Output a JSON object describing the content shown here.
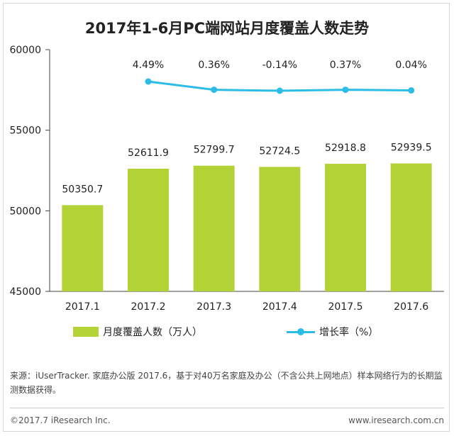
{
  "chart_data": {
    "type": "bar",
    "title": "2017年1-6月PC端网站月度覆盖人数走势",
    "categories": [
      "2017.1",
      "2017.2",
      "2017.3",
      "2017.4",
      "2017.5",
      "2017.6"
    ],
    "ylim": [
      45000,
      60000
    ],
    "yticks": [
      45000,
      50000,
      55000,
      60000
    ],
    "grid": false,
    "legend_position": "bottom",
    "series": [
      {
        "name": "月度覆盖人数（万人）",
        "type": "bar",
        "values": [
          50350.7,
          52611.9,
          52799.7,
          52724.5,
          52918.8,
          52939.5
        ],
        "labels": [
          "50350.7",
          "52611.9",
          "52799.7",
          "52724.5",
          "52918.8",
          "52939.5"
        ],
        "color": "#b3d235"
      },
      {
        "name": "增长率（%）",
        "type": "line",
        "values": [
          null,
          4.49,
          0.36,
          -0.14,
          0.37,
          0.04
        ],
        "labels": [
          "",
          "4.49%",
          "0.36%",
          "-0.14%",
          "0.37%",
          "0.04%"
        ],
        "color": "#2bbde8"
      }
    ]
  },
  "footer": {
    "source": "来源：iUserTracker. 家庭办公版 2017.6，基于对40万名家庭及办公（不含公共上网地点）样本网络行为的长期监测数据获得。",
    "copyright": "©2017.7 iResearch Inc.",
    "website": "www.iresearch.com.cn"
  }
}
